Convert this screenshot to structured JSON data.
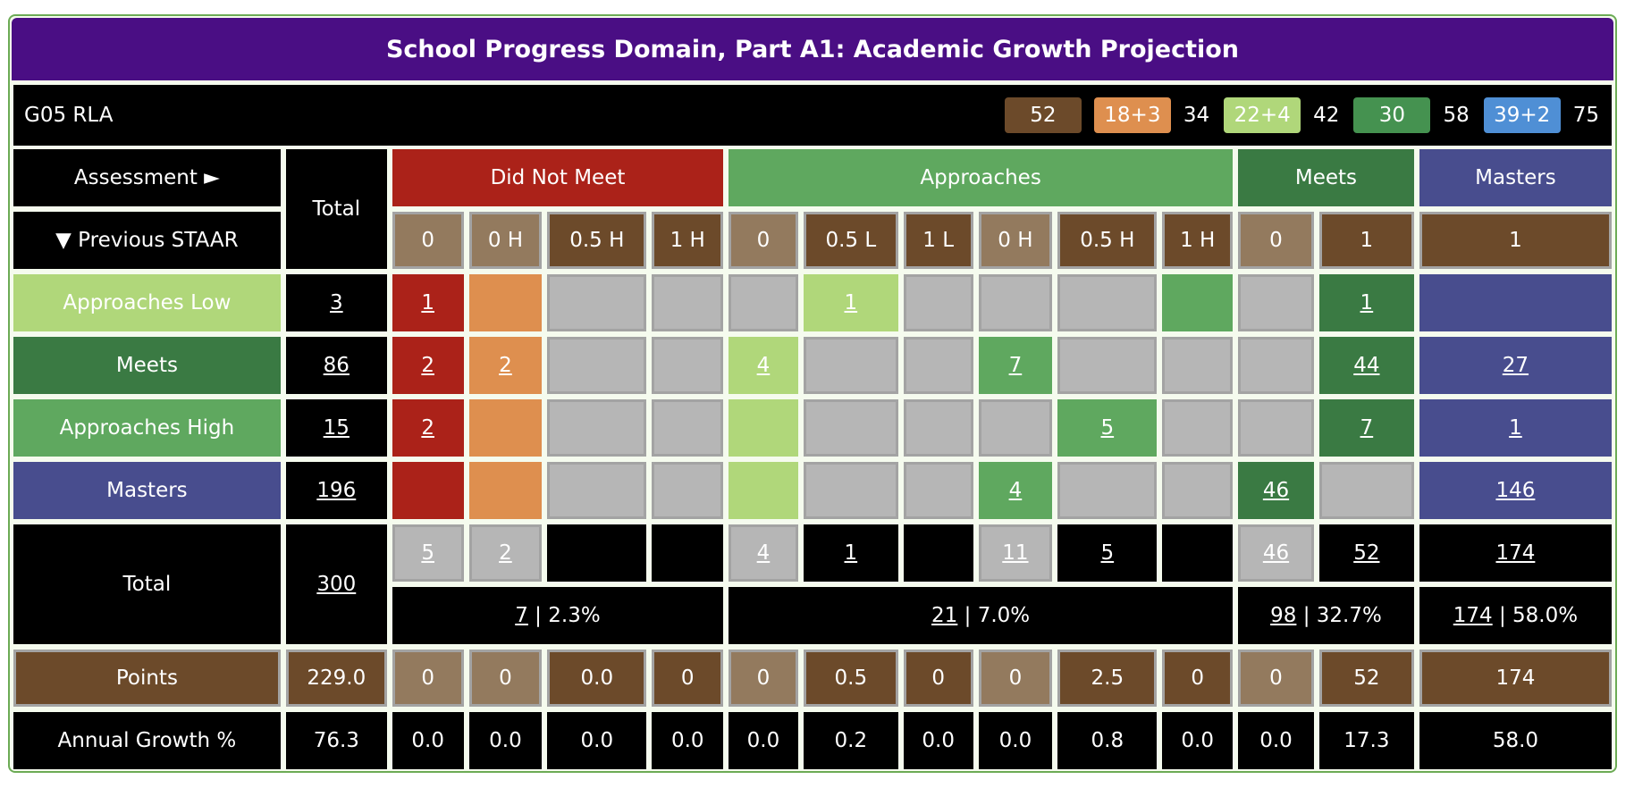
{
  "title": "School Progress Domain, Part A1: Academic Growth Projection",
  "info": {
    "label": "G05 RLA",
    "badges": [
      {
        "text": "52",
        "color": "#6c4a2a"
      },
      {
        "text": "18+3",
        "color": "#de8f4f"
      },
      {
        "text": "34",
        "color": ""
      },
      {
        "text": "22+4",
        "color": "#b0d77a"
      },
      {
        "text": "42",
        "color": ""
      },
      {
        "text": "30",
        "color": "#459250"
      },
      {
        "text": "58",
        "color": ""
      },
      {
        "text": "39+2",
        "color": "#4f8fd5"
      },
      {
        "text": "75",
        "color": ""
      }
    ]
  },
  "palette": {
    "red": "#ab2219",
    "orange": "#de8f4f",
    "lgreen": "#b0d77a",
    "green": "#5fa85f",
    "dgreen": "#3a7a43",
    "masters": "#484d8e",
    "brown": "#6c4a2a",
    "lbrown": "#937a5e",
    "gray": "#b6b6b6",
    "black": "#000000"
  },
  "header": {
    "assessment_label": "Assessment ►",
    "previous_label": "▼ Previous STAAR",
    "total_label": "Total",
    "groups": [
      {
        "label": "Did Not Meet",
        "span": 4,
        "color": "red"
      },
      {
        "label": "Approaches",
        "span": 6,
        "color": "green"
      },
      {
        "label": "Meets",
        "span": 2,
        "color": "dgreen"
      },
      {
        "label": "Masters",
        "span": 1,
        "color": "masters"
      }
    ],
    "subheaders": [
      {
        "label": "0",
        "color": "lbrown"
      },
      {
        "label": "0 H",
        "color": "lbrown"
      },
      {
        "label": "0.5 H",
        "color": "brown"
      },
      {
        "label": "1 H",
        "color": "brown"
      },
      {
        "label": "0",
        "color": "lbrown"
      },
      {
        "label": "0.5 L",
        "color": "brown"
      },
      {
        "label": "1 L",
        "color": "brown"
      },
      {
        "label": "0 H",
        "color": "lbrown"
      },
      {
        "label": "0.5 H",
        "color": "brown"
      },
      {
        "label": "1 H",
        "color": "brown"
      },
      {
        "label": "0",
        "color": "lbrown"
      },
      {
        "label": "1",
        "color": "brown"
      },
      {
        "label": "1",
        "color": "brown"
      }
    ]
  },
  "rows": [
    {
      "label": "Approaches Low",
      "color": "lgreen",
      "total": "3",
      "cells": [
        [
          "1",
          "red"
        ],
        [
          "",
          "orange"
        ],
        [
          "",
          "gray"
        ],
        [
          "",
          "gray"
        ],
        [
          "",
          "gray"
        ],
        [
          "1",
          "lgreen"
        ],
        [
          "",
          "gray"
        ],
        [
          "",
          "gray"
        ],
        [
          "",
          "gray"
        ],
        [
          "",
          "green"
        ],
        [
          "",
          "gray"
        ],
        [
          "1",
          "dgreen"
        ],
        [
          "",
          "masters"
        ]
      ]
    },
    {
      "label": "Meets",
      "color": "dgreen",
      "total": "86",
      "cells": [
        [
          "2",
          "red"
        ],
        [
          "2",
          "orange"
        ],
        [
          "",
          "gray"
        ],
        [
          "",
          "gray"
        ],
        [
          "4",
          "lgreen"
        ],
        [
          "",
          "gray"
        ],
        [
          "",
          "gray"
        ],
        [
          "7",
          "green"
        ],
        [
          "",
          "gray"
        ],
        [
          "",
          "gray"
        ],
        [
          "",
          "gray"
        ],
        [
          "44",
          "dgreen"
        ],
        [
          "27",
          "masters"
        ]
      ]
    },
    {
      "label": "Approaches High",
      "color": "green",
      "total": "15",
      "cells": [
        [
          "2",
          "red"
        ],
        [
          "",
          "orange"
        ],
        [
          "",
          "gray"
        ],
        [
          "",
          "gray"
        ],
        [
          "",
          "lgreen"
        ],
        [
          "",
          "gray"
        ],
        [
          "",
          "gray"
        ],
        [
          "",
          "gray"
        ],
        [
          "5",
          "green"
        ],
        [
          "",
          "gray"
        ],
        [
          "",
          "gray"
        ],
        [
          "7",
          "dgreen"
        ],
        [
          "1",
          "masters"
        ]
      ]
    },
    {
      "label": "Masters",
      "color": "masters",
      "total": "196",
      "cells": [
        [
          "",
          "red"
        ],
        [
          "",
          "orange"
        ],
        [
          "",
          "gray"
        ],
        [
          "",
          "gray"
        ],
        [
          "",
          "lgreen"
        ],
        [
          "",
          "gray"
        ],
        [
          "",
          "gray"
        ],
        [
          "4",
          "green"
        ],
        [
          "",
          "gray"
        ],
        [
          "",
          "gray"
        ],
        [
          "46",
          "dgreen"
        ],
        [
          "",
          "gray"
        ],
        [
          "146",
          "masters"
        ]
      ]
    }
  ],
  "totals": {
    "label": "Total",
    "total": "300",
    "cells": [
      [
        "5",
        "gray"
      ],
      [
        "2",
        "gray"
      ],
      [
        "",
        "black"
      ],
      [
        "",
        "black"
      ],
      [
        "4",
        "gray"
      ],
      [
        "1",
        "black"
      ],
      [
        "",
        "black"
      ],
      [
        "11",
        "gray"
      ],
      [
        "5",
        "black"
      ],
      [
        "",
        "black"
      ],
      [
        "46",
        "gray"
      ],
      [
        "52",
        "black"
      ],
      [
        "174",
        "black"
      ]
    ],
    "groups": [
      {
        "count": "7",
        "pct": " | 2.3%",
        "span": 4
      },
      {
        "count": "21",
        "pct": " | 7.0%",
        "span": 6
      },
      {
        "count": "98",
        "pct": " | 32.7%",
        "span": 2
      },
      {
        "count": "174",
        "pct": " | 58.0%",
        "span": 1
      }
    ]
  },
  "points": {
    "label": "Points",
    "total": "229.0",
    "values": [
      "0",
      "0",
      "0.0",
      "0",
      "0",
      "0.5",
      "0",
      "0",
      "2.5",
      "0",
      "0",
      "52",
      "174"
    ]
  },
  "growth": {
    "label": "Annual Growth %",
    "total": "76.3",
    "values": [
      "0.0",
      "0.0",
      "0.0",
      "0.0",
      "0.0",
      "0.2",
      "0.0",
      "0.0",
      "0.8",
      "0.0",
      "0.0",
      "17.3",
      "58.0"
    ]
  }
}
